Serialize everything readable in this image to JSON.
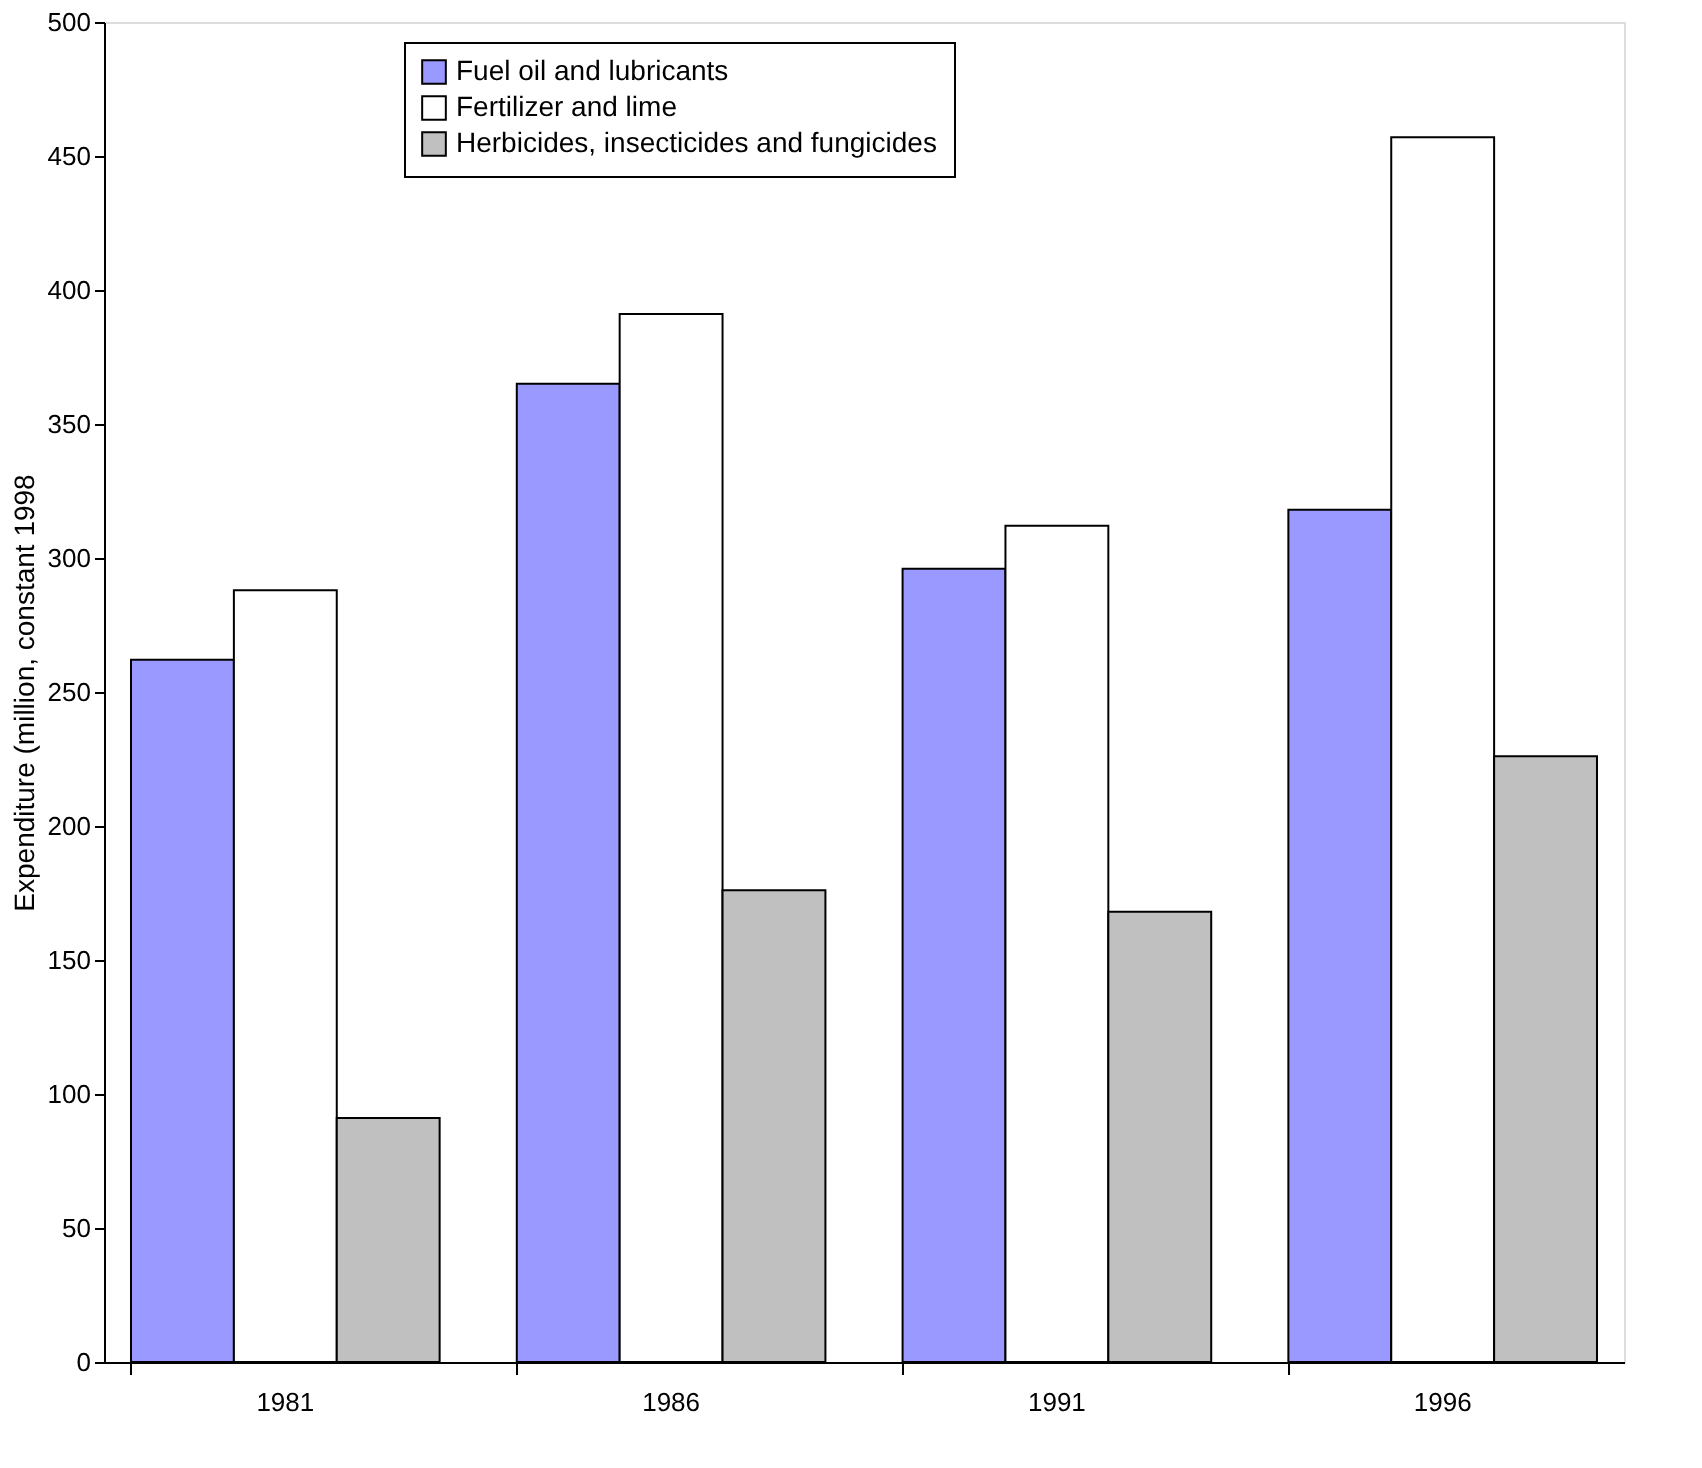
{
  "chart_data": {
    "type": "bar",
    "ylabel": "Expenditure (million, constant 1998",
    "categories": [
      "1981",
      "1986",
      "1991",
      "1996"
    ],
    "series": [
      {
        "name": "Fuel oil and lubricants",
        "color": "#9999ff",
        "values": [
          262,
          365,
          296,
          318
        ]
      },
      {
        "name": "Fertilizer and lime",
        "color": "#ffffff",
        "values": [
          288,
          391,
          312,
          457
        ]
      },
      {
        "name": "Herbicides, insecticides and fungicides",
        "color": "#c0c0c0",
        "values": [
          91,
          176,
          168,
          226
        ]
      }
    ],
    "ylim": [
      0,
      500
    ],
    "yticks": [
      0,
      50,
      100,
      150,
      200,
      250,
      300,
      350,
      400,
      450,
      500
    ],
    "grid": false,
    "legend": "top"
  }
}
